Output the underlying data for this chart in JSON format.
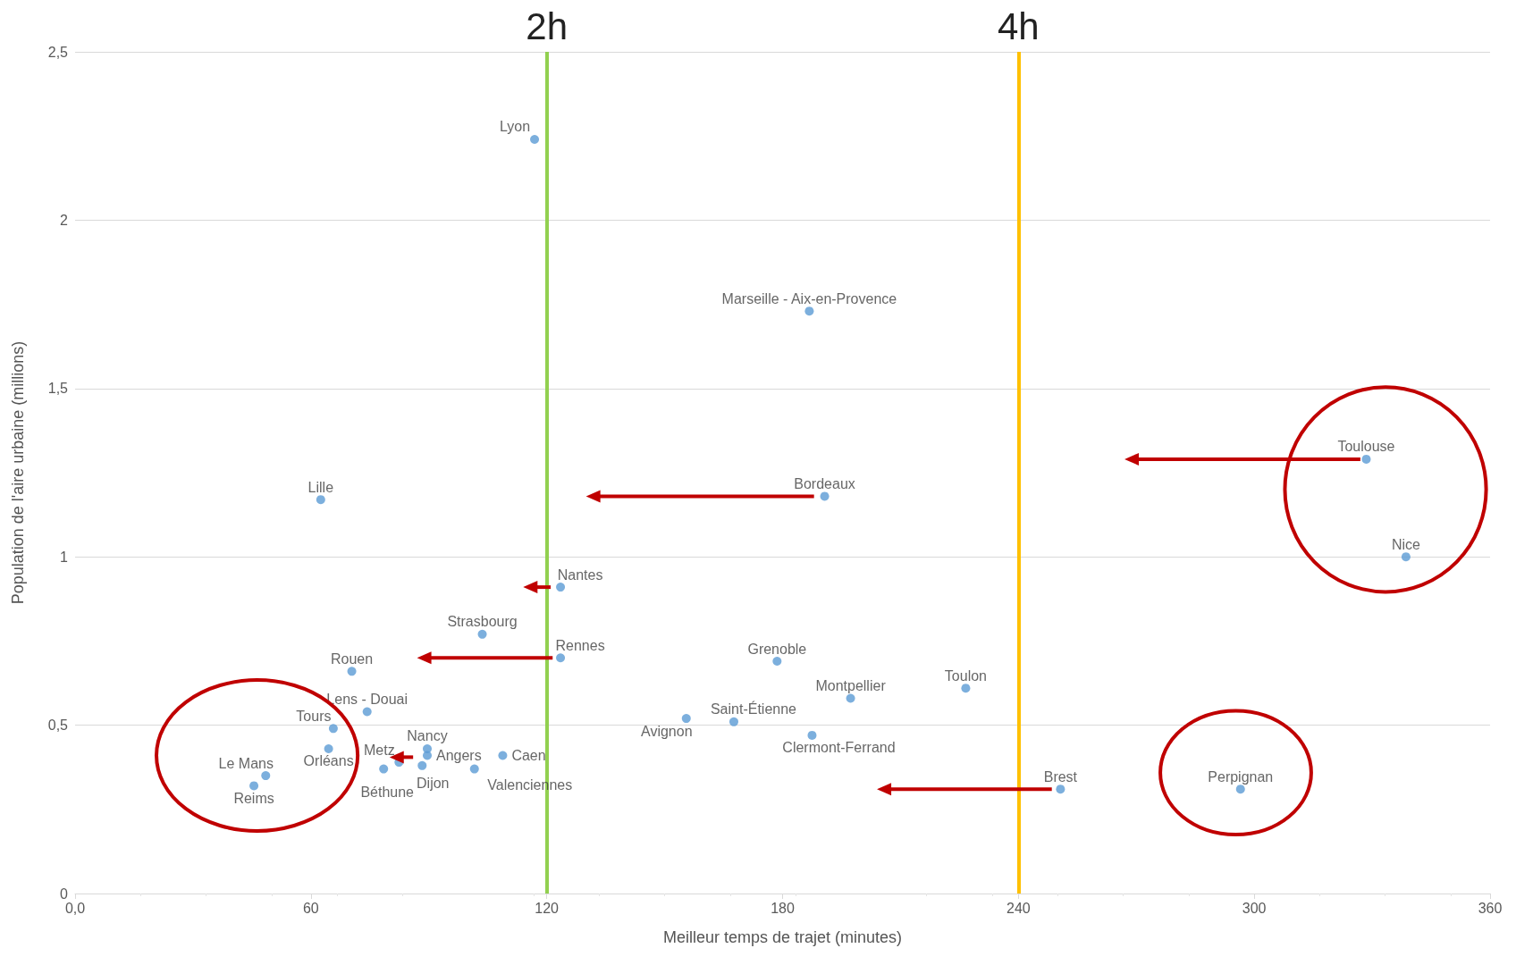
{
  "chart_data": {
    "type": "scatter",
    "xlabel": "Meilleur temps de trajet (minutes)",
    "ylabel": "Population de l'aire urbaine (millions)",
    "xlim": [
      0,
      360
    ],
    "xticks": [
      {
        "value": 0,
        "label": "0,0"
      },
      60,
      120,
      180,
      240,
      300,
      360
    ],
    "ylim": [
      0,
      2.5
    ],
    "yticks": [
      0,
      {
        "value": 0.5,
        "label": "0,5"
      },
      1,
      {
        "value": 1.5,
        "label": "1,5"
      },
      2,
      {
        "value": 2.5,
        "label": "2,5"
      }
    ],
    "grid": "y",
    "marker": "circle",
    "series": [
      {
        "color": "#5b9bd5",
        "x": [
          116.9,
          186.8,
          62.5,
          190.7,
          328.5,
          338.6,
          123.5,
          103.6,
          123.5,
          70.4,
          74.3,
          65.7,
          64.5,
          48.5,
          45.5,
          82.4,
          78.5,
          89.6,
          89.6,
          88.3,
          108.8,
          101.6,
          155.5,
          167.6,
          178.6,
          197.3,
          187.5,
          226.6,
          250.7,
          296.5
        ],
        "values": [
          2.24,
          1.73,
          1.17,
          1.18,
          1.29,
          1.0,
          0.91,
          0.77,
          0.7,
          0.66,
          0.54,
          0.49,
          0.43,
          0.35,
          0.32,
          0.39,
          0.37,
          0.43,
          0.41,
          0.38,
          0.41,
          0.37,
          0.52,
          0.51,
          0.69,
          0.58,
          0.47,
          0.61,
          0.31,
          0.31
        ]
      }
    ],
    "annotations": [
      {
        "text": "Lyon",
        "x": 116.9,
        "y": 2.24
      },
      {
        "text": "Marseille - Aix-en-Provence",
        "x": 186.8,
        "y": 1.73
      },
      {
        "text": "Lille",
        "x": 62.5,
        "y": 1.17
      },
      {
        "text": "Bordeaux",
        "x": 190.7,
        "y": 1.18
      },
      {
        "text": "Toulouse",
        "x": 328.5,
        "y": 1.29
      },
      {
        "text": "Nice",
        "x": 338.6,
        "y": 1.0
      },
      {
        "text": "Nantes",
        "x": 123.5,
        "y": 0.91
      },
      {
        "text": "Strasbourg",
        "x": 103.6,
        "y": 0.77
      },
      {
        "text": "Rennes",
        "x": 123.5,
        "y": 0.7
      },
      {
        "text": "Rouen",
        "x": 70.4,
        "y": 0.66
      },
      {
        "text": "Lens - Douai",
        "x": 74.3,
        "y": 0.54
      },
      {
        "text": "Tours",
        "x": 65.7,
        "y": 0.49
      },
      {
        "text": "Orléans",
        "x": 64.5,
        "y": 0.43
      },
      {
        "text": "Le Mans",
        "x": 48.5,
        "y": 0.35
      },
      {
        "text": "Reims",
        "x": 45.5,
        "y": 0.32
      },
      {
        "text": "Metz",
        "x": 82.4,
        "y": 0.39
      },
      {
        "text": "Béthune",
        "x": 78.5,
        "y": 0.37
      },
      {
        "text": "Nancy",
        "x": 89.6,
        "y": 0.43
      },
      {
        "text": "Angers",
        "x": 89.6,
        "y": 0.41
      },
      {
        "text": "Dijon",
        "x": 88.3,
        "y": 0.38
      },
      {
        "text": "Caen",
        "x": 108.8,
        "y": 0.41
      },
      {
        "text": "Valenciennes",
        "x": 101.6,
        "y": 0.37
      },
      {
        "text": "Avignon",
        "x": 155.5,
        "y": 0.52
      },
      {
        "text": "Saint-Étienne",
        "x": 167.6,
        "y": 0.51
      },
      {
        "text": "Grenoble",
        "x": 178.6,
        "y": 0.69
      },
      {
        "text": "Montpellier",
        "x": 197.3,
        "y": 0.58
      },
      {
        "text": "Clermont-Ferrand",
        "x": 187.5,
        "y": 0.47
      },
      {
        "text": "Toulon",
        "x": 226.6,
        "y": 0.61
      },
      {
        "text": "Brest",
        "x": 250.7,
        "y": 0.31
      },
      {
        "text": "Perpignan",
        "x": 296.5,
        "y": 0.31
      }
    ],
    "ref_lines": [
      {
        "axis": "x",
        "value": 120,
        "label": "2h",
        "color": "#92d050"
      },
      {
        "axis": "x",
        "value": 240,
        "label": "4h",
        "color": "#ffc000"
      }
    ]
  }
}
